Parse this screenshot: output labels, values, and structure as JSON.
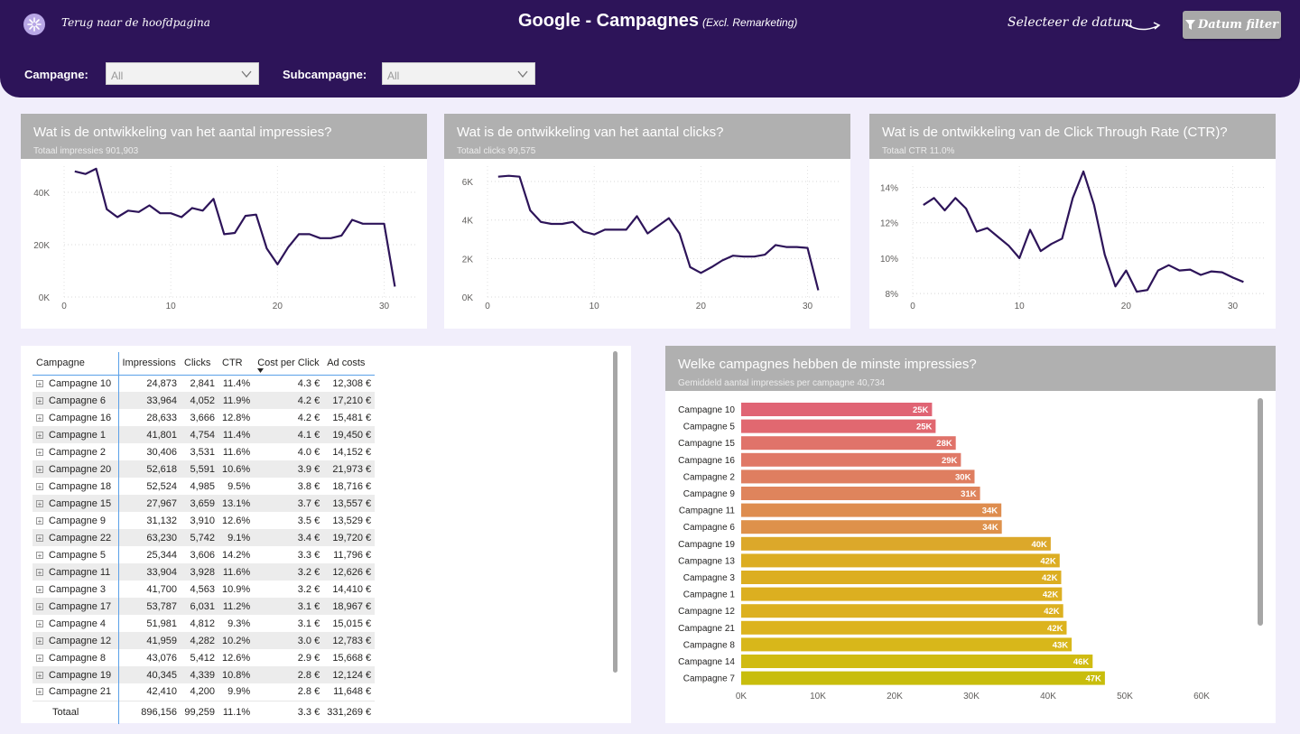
{
  "header": {
    "back_label": "Terug naar de hoofdpagina",
    "title": "Google - Campagnes",
    "title_sub": "(Excl. Remarketing)",
    "select_date": "Selecteer de datum",
    "filter_button": "Datum filter"
  },
  "slicers": [
    {
      "label": "Campagne:",
      "value": "All"
    },
    {
      "label": "Subcampagne:",
      "value": "All"
    }
  ],
  "colors": {
    "header_bg": "#2d1459",
    "line": "#2d1459",
    "card_head": "#b0b0b0"
  },
  "charts": [
    {
      "title": "Wat is de ontwikkeling van het aantal impressies?",
      "subtitle": "Totaal impressies 901,903",
      "chart_data": {
        "type": "line",
        "x": [
          1,
          2,
          3,
          4,
          5,
          6,
          7,
          8,
          9,
          10,
          11,
          12,
          13,
          14,
          15,
          16,
          17,
          18,
          19,
          20,
          21,
          22,
          23,
          24,
          25,
          26,
          27,
          28,
          29,
          30,
          31
        ],
        "values": [
          48000,
          47000,
          49000,
          33500,
          30500,
          33000,
          32500,
          35000,
          32000,
          32000,
          30500,
          34000,
          33000,
          37500,
          24000,
          24500,
          31000,
          31500,
          18500,
          12500,
          19000,
          24000,
          24000,
          22500,
          22500,
          23500,
          29500,
          28000,
          28000,
          28000,
          4000
        ],
        "xlim": [
          0,
          33
        ],
        "ylim": [
          0,
          50000
        ],
        "yticks": [
          "0K",
          "20K",
          "40K"
        ],
        "ytick_values": [
          0,
          20000,
          40000
        ],
        "xticks": [
          "0",
          "10",
          "20",
          "30"
        ],
        "xtick_values": [
          0,
          10,
          20,
          30
        ],
        "grid": true
      }
    },
    {
      "title": "Wat is de ontwikkeling van het aantal clicks?",
      "subtitle": "Totaal clicks 99,575",
      "chart_data": {
        "type": "line",
        "x": [
          1,
          2,
          3,
          4,
          5,
          6,
          7,
          8,
          9,
          10,
          11,
          12,
          13,
          14,
          15,
          16,
          17,
          18,
          19,
          20,
          21,
          22,
          23,
          24,
          25,
          26,
          27,
          28,
          29,
          30,
          31
        ],
        "values": [
          6250,
          6300,
          6250,
          4500,
          3900,
          3800,
          3800,
          3900,
          3400,
          3250,
          3500,
          3500,
          3500,
          4200,
          3300,
          3700,
          4100,
          3300,
          1550,
          1250,
          1550,
          1900,
          2150,
          2100,
          2100,
          2200,
          2700,
          2600,
          2600,
          2550,
          350
        ],
        "xlim": [
          0,
          33
        ],
        "ylim": [
          0,
          6800
        ],
        "yticks": [
          "0K",
          "2K",
          "4K",
          "6K"
        ],
        "ytick_values": [
          0,
          2000,
          4000,
          6000
        ],
        "xticks": [
          "0",
          "10",
          "20",
          "30"
        ],
        "xtick_values": [
          0,
          10,
          20,
          30
        ],
        "grid": true
      }
    },
    {
      "title": "Wat is de ontwikkeling van de Click Through Rate (CTR)?",
      "subtitle": "Totaal CTR 11.0%",
      "chart_data": {
        "type": "line",
        "x": [
          1,
          2,
          3,
          4,
          5,
          6,
          7,
          8,
          9,
          10,
          11,
          12,
          13,
          14,
          15,
          16,
          17,
          18,
          19,
          20,
          21,
          22,
          23,
          24,
          25,
          26,
          27,
          28,
          29,
          30,
          31
        ],
        "values": [
          13.0,
          13.4,
          12.7,
          13.4,
          12.8,
          11.5,
          11.7,
          11.2,
          10.7,
          10.0,
          11.6,
          10.4,
          10.8,
          11.1,
          13.4,
          14.9,
          13.0,
          10.2,
          8.4,
          9.3,
          8.1,
          8.2,
          9.3,
          9.6,
          9.3,
          9.35,
          9.05,
          9.25,
          9.2,
          8.9,
          8.65
        ],
        "xlim": [
          0,
          33
        ],
        "ylim": [
          7.8,
          15.2
        ],
        "yticks": [
          "8%",
          "10%",
          "12%",
          "14%"
        ],
        "ytick_values": [
          8,
          10,
          12,
          14
        ],
        "xticks": [
          "0",
          "10",
          "20",
          "30"
        ],
        "xtick_values": [
          0,
          10,
          20,
          30
        ],
        "grid": true
      }
    }
  ],
  "table": {
    "columns": [
      "Campagne",
      "Impressions",
      "Clicks",
      "CTR",
      "Cost per Click",
      "Ad costs"
    ],
    "rows": [
      [
        "Campagne 10",
        "24,873",
        "2,841",
        "11.4%",
        "4.3 €",
        "12,308 €"
      ],
      [
        "Campagne 6",
        "33,964",
        "4,052",
        "11.9%",
        "4.2 €",
        "17,210 €"
      ],
      [
        "Campagne 16",
        "28,633",
        "3,666",
        "12.8%",
        "4.2 €",
        "15,481 €"
      ],
      [
        "Campagne 1",
        "41,801",
        "4,754",
        "11.4%",
        "4.1 €",
        "19,450 €"
      ],
      [
        "Campagne 2",
        "30,406",
        "3,531",
        "11.6%",
        "4.0 €",
        "14,152 €"
      ],
      [
        "Campagne 20",
        "52,618",
        "5,591",
        "10.6%",
        "3.9 €",
        "21,973 €"
      ],
      [
        "Campagne 18",
        "52,524",
        "4,985",
        "9.5%",
        "3.8 €",
        "18,716 €"
      ],
      [
        "Campagne 15",
        "27,967",
        "3,659",
        "13.1%",
        "3.7 €",
        "13,557 €"
      ],
      [
        "Campagne 9",
        "31,132",
        "3,910",
        "12.6%",
        "3.5 €",
        "13,529 €"
      ],
      [
        "Campagne 22",
        "63,230",
        "5,742",
        "9.1%",
        "3.4 €",
        "19,720 €"
      ],
      [
        "Campagne 5",
        "25,344",
        "3,606",
        "14.2%",
        "3.3 €",
        "11,796 €"
      ],
      [
        "Campagne 11",
        "33,904",
        "3,928",
        "11.6%",
        "3.2 €",
        "12,626 €"
      ],
      [
        "Campagne 3",
        "41,700",
        "4,563",
        "10.9%",
        "3.2 €",
        "14,410 €"
      ],
      [
        "Campagne 17",
        "53,787",
        "6,031",
        "11.2%",
        "3.1 €",
        "18,967 €"
      ],
      [
        "Campagne 4",
        "51,981",
        "4,812",
        "9.3%",
        "3.1 €",
        "15,015 €"
      ],
      [
        "Campagne 12",
        "41,959",
        "4,282",
        "10.2%",
        "3.0 €",
        "12,783 €"
      ],
      [
        "Campagne 8",
        "43,076",
        "5,412",
        "12.6%",
        "2.9 €",
        "15,668 €"
      ],
      [
        "Campagne 19",
        "40,345",
        "4,339",
        "10.8%",
        "2.8 €",
        "12,124 €"
      ],
      [
        "Campagne 21",
        "42,410",
        "4,200",
        "9.9%",
        "2.8 €",
        "11,648 €"
      ]
    ],
    "total": [
      "Totaal",
      "896,156",
      "99,259",
      "11.1%",
      "3.3 €",
      "331,269 €"
    ],
    "expand_glyph": "+"
  },
  "bar_card": {
    "title": "Welke campagnes hebben de minste impressies?",
    "subtitle": "Gemiddeld aantal impressies per campagne 40,734",
    "chart_data": {
      "type": "bar",
      "orientation": "horizontal",
      "categories": [
        "Campagne 10",
        "Campagne 5",
        "Campagne 15",
        "Campagne 16",
        "Campagne 2",
        "Campagne 9",
        "Campagne 11",
        "Campagne 6",
        "Campagne 19",
        "Campagne 13",
        "Campagne 3",
        "Campagne 1",
        "Campagne 12",
        "Campagne 21",
        "Campagne 8",
        "Campagne 14",
        "Campagne 7"
      ],
      "values": [
        24873,
        25344,
        27967,
        28633,
        30406,
        31132,
        33904,
        33964,
        40345,
        41500,
        41700,
        41801,
        41959,
        42410,
        43076,
        45800,
        47400
      ],
      "labels": [
        "25K",
        "25K",
        "28K",
        "29K",
        "30K",
        "31K",
        "34K",
        "34K",
        "40K",
        "42K",
        "42K",
        "42K",
        "42K",
        "42K",
        "43K",
        "46K",
        "47K"
      ],
      "colors": [
        "#e06474",
        "#e16870",
        "#e0736a",
        "#e07866",
        "#df7e60",
        "#df845c",
        "#de8d4f",
        "#de914b",
        "#dca82a",
        "#dcad22",
        "#dcae20",
        "#dcaf20",
        "#dcb020",
        "#dcb31e",
        "#d8b71a",
        "#d0bb12",
        "#c8bd0c"
      ],
      "xlim": [
        0,
        70000
      ],
      "xticks": [
        "0K",
        "10K",
        "20K",
        "30K",
        "40K",
        "50K",
        "60K"
      ],
      "xtick_values": [
        0,
        10000,
        20000,
        30000,
        40000,
        50000,
        60000
      ]
    }
  }
}
